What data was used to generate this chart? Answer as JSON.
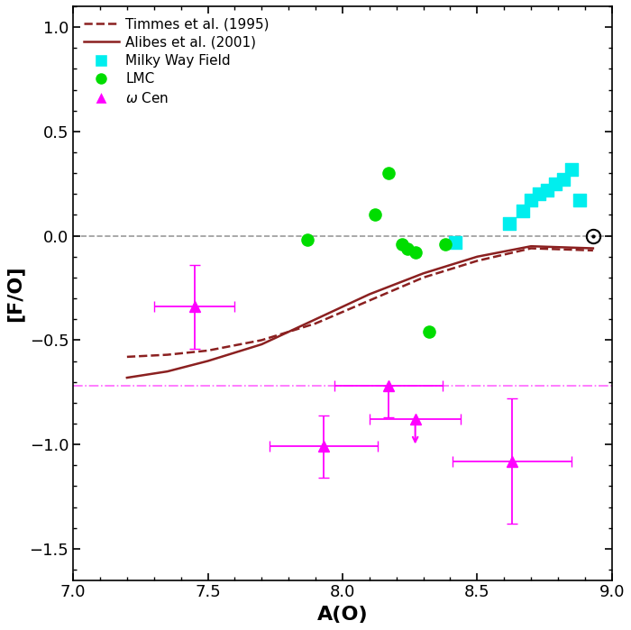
{
  "xlim": [
    7.0,
    9.0
  ],
  "ylim": [
    -1.65,
    1.1
  ],
  "xlabel": "A(O)",
  "ylabel": "[F/O]",
  "timmes_x": [
    7.2,
    7.35,
    7.5,
    7.7,
    7.9,
    8.1,
    8.3,
    8.5,
    8.7,
    8.93
  ],
  "timmes_y": [
    -0.58,
    -0.57,
    -0.55,
    -0.5,
    -0.42,
    -0.31,
    -0.2,
    -0.12,
    -0.06,
    -0.07
  ],
  "alibes_x": [
    7.2,
    7.35,
    7.5,
    7.7,
    7.9,
    8.1,
    8.3,
    8.5,
    8.7,
    8.93
  ],
  "alibes_y": [
    -0.68,
    -0.65,
    -0.6,
    -0.52,
    -0.4,
    -0.28,
    -0.18,
    -0.1,
    -0.05,
    -0.06
  ],
  "milky_way_x": [
    8.42,
    8.62,
    8.67,
    8.7,
    8.73,
    8.76,
    8.79,
    8.82,
    8.85,
    8.88
  ],
  "milky_way_y": [
    -0.03,
    0.06,
    0.12,
    0.17,
    0.2,
    0.22,
    0.25,
    0.27,
    0.32,
    0.17
  ],
  "lmc_x": [
    7.87,
    8.12,
    8.17,
    8.22,
    8.24,
    8.27,
    8.32,
    8.38
  ],
  "lmc_y": [
    -0.02,
    0.1,
    0.3,
    -0.04,
    -0.06,
    -0.08,
    -0.46,
    -0.04
  ],
  "omega_cen_x": [
    7.45,
    7.93,
    8.17,
    8.27,
    8.63
  ],
  "omega_cen_y": [
    -0.34,
    -1.01,
    -0.72,
    -0.88,
    -1.08
  ],
  "omega_cen_xerr": [
    0.15,
    0.2,
    0.2,
    0.17,
    0.22
  ],
  "omega_cen_yerr_lo": [
    0.2,
    0.15,
    0.15,
    0.0,
    0.3
  ],
  "omega_cen_yerr_hi": [
    0.2,
    0.15,
    0.0,
    0.15,
    0.3
  ],
  "omega_cen_uplim": [
    false,
    false,
    false,
    true,
    false
  ],
  "omega_cen_mean_y": -0.72,
  "solar_x": 8.93,
  "solar_y": 0.0,
  "hline_color": "#999999",
  "timmes_color": "#8B2020",
  "alibes_color": "#8B2020",
  "milky_way_color": "#00EEEE",
  "lmc_color": "#00DD00",
  "omega_cen_color": "#FF00FF"
}
